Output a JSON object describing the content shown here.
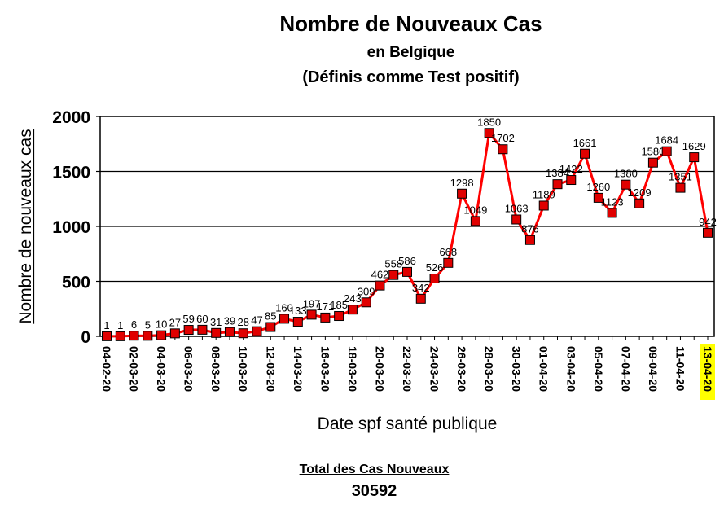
{
  "chart_data": {
    "type": "line",
    "title": "Nombre de Nouveaux Cas",
    "subtitle": "en Belgique",
    "subtitle2": "(Définis comme Test positif)",
    "xlabel": "Date spf santé publique",
    "ylabel": "Nombre de nouveaux cas",
    "ylim": [
      0,
      2000
    ],
    "yticks": [
      0,
      500,
      1000,
      1500,
      2000
    ],
    "grid": true,
    "line_color": "#ff0000",
    "marker_color": "#e00000",
    "highlight_color": "#ffff00",
    "x_tick_labels": [
      "04-02-20",
      "02-03-20",
      "04-03-20",
      "06-03-20",
      "08-03-20",
      "10-03-20",
      "12-03-20",
      "14-03-20",
      "16-03-20",
      "18-03-20",
      "20-03-20",
      "22-03-20",
      "24-03-20",
      "26-03-20",
      "28-03-20",
      "30-03-20",
      "01-04-20",
      "03-04-20",
      "05-04-20",
      "07-04-20",
      "09-04-20",
      "11-04-20",
      "13-04-20"
    ],
    "highlighted_tick": "13-04-20",
    "values": [
      1,
      1,
      6,
      5,
      10,
      27,
      59,
      60,
      31,
      39,
      28,
      47,
      85,
      160,
      133,
      197,
      171,
      185,
      243,
      309,
      462,
      558,
      586,
      342,
      526,
      668,
      1298,
      1049,
      1850,
      1702,
      1063,
      876,
      1189,
      1384,
      1422,
      1661,
      1260,
      1123,
      1380,
      1209,
      1580,
      1684,
      1351,
      1629,
      942
    ],
    "point_labels": [
      "1",
      "1",
      "6",
      "5",
      "10",
      "27",
      "59",
      "60",
      "31",
      "39",
      "28",
      "47",
      "85",
      "160",
      "133",
      "197",
      "171",
      "185",
      "243",
      "309",
      "462",
      "558",
      "586",
      "342",
      "526",
      "668",
      "1298",
      "1049",
      "1850",
      "1702",
      "1063",
      "876",
      "1189",
      "1384",
      "1422",
      "1661",
      "1260",
      "1123",
      "1380",
      "1209",
      "1580",
      "1684",
      "1351",
      "1629",
      "942"
    ]
  },
  "footer": {
    "label": "Total des Cas Nouveaux",
    "total": "30592"
  }
}
